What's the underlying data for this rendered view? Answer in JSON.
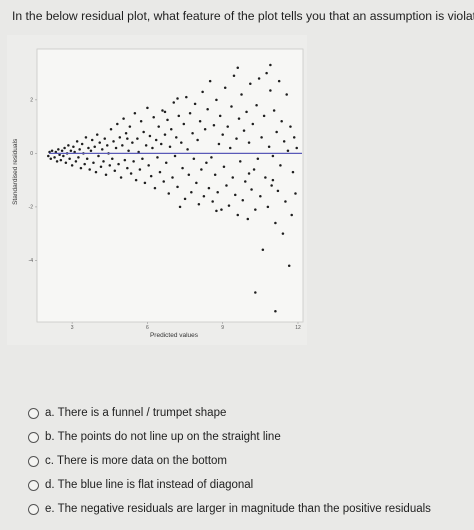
{
  "question": "In the below residual plot, what feature of the plot tells you that an assumption is violated?",
  "chart_data": {
    "type": "scatter",
    "title": "",
    "xlabel": "Predicted values",
    "ylabel": "Standardised residuals",
    "xlim": [
      1.6,
      12.2
    ],
    "ylim": [
      -6.3,
      3.9
    ],
    "x_ticks": [
      "3",
      "6",
      "9",
      "12"
    ],
    "y_ticks": [
      "2",
      "0",
      "-2",
      "-4"
    ],
    "grid": false,
    "fit_line": {
      "y": 0,
      "color": "#5a5ab8"
    },
    "points": [
      [
        2.05,
        -0.1
      ],
      [
        2.1,
        0.05
      ],
      [
        2.15,
        -0.2
      ],
      [
        2.2,
        0.1
      ],
      [
        2.3,
        -0.15
      ],
      [
        2.35,
        0.05
      ],
      [
        2.4,
        -0.3
      ],
      [
        2.45,
        0.15
      ],
      [
        2.5,
        -0.05
      ],
      [
        2.55,
        -0.25
      ],
      [
        2.6,
        0.1
      ],
      [
        2.65,
        -0.1
      ],
      [
        2.7,
        0.2
      ],
      [
        2.75,
        -0.35
      ],
      [
        2.8,
        0.0
      ],
      [
        2.85,
        0.3
      ],
      [
        2.9,
        -0.2
      ],
      [
        2.95,
        0.1
      ],
      [
        3.0,
        -0.45
      ],
      [
        3.05,
        0.25
      ],
      [
        3.1,
        0.05
      ],
      [
        3.15,
        -0.3
      ],
      [
        3.2,
        0.45
      ],
      [
        3.25,
        -0.15
      ],
      [
        3.3,
        0.15
      ],
      [
        3.35,
        -0.55
      ],
      [
        3.4,
        0.35
      ],
      [
        3.45,
        0.0
      ],
      [
        3.5,
        -0.4
      ],
      [
        3.55,
        0.6
      ],
      [
        3.6,
        -0.2
      ],
      [
        3.65,
        0.2
      ],
      [
        3.7,
        -0.6
      ],
      [
        3.75,
        0.1
      ],
      [
        3.8,
        0.5
      ],
      [
        3.85,
        -0.35
      ],
      [
        3.9,
        0.25
      ],
      [
        3.95,
        -0.7
      ],
      [
        4.0,
        0.7
      ],
      [
        4.05,
        -0.1
      ],
      [
        4.1,
        0.4
      ],
      [
        4.15,
        -0.5
      ],
      [
        4.2,
        0.15
      ],
      [
        4.25,
        -0.3
      ],
      [
        4.3,
        0.55
      ],
      [
        4.35,
        -0.8
      ],
      [
        4.4,
        0.3
      ],
      [
        4.45,
        0.0
      ],
      [
        4.5,
        -0.45
      ],
      [
        4.55,
        0.9
      ],
      [
        4.6,
        -0.2
      ],
      [
        4.65,
        0.45
      ],
      [
        4.7,
        -0.65
      ],
      [
        4.75,
        0.2
      ],
      [
        4.8,
        1.1
      ],
      [
        4.85,
        -0.4
      ],
      [
        4.9,
        0.6
      ],
      [
        4.95,
        -0.9
      ],
      [
        5.0,
        0.3
      ],
      [
        5.05,
        1.3
      ],
      [
        5.1,
        -0.25
      ],
      [
        5.15,
        0.75
      ],
      [
        5.2,
        -0.55
      ],
      [
        5.25,
        0.1
      ],
      [
        5.3,
        1.0
      ],
      [
        5.35,
        -0.75
      ],
      [
        5.4,
        0.4
      ],
      [
        5.45,
        -0.3
      ],
      [
        5.5,
        1.5
      ],
      [
        5.55,
        -1.0
      ],
      [
        5.6,
        0.55
      ],
      [
        5.65,
        0.05
      ],
      [
        5.7,
        -0.6
      ],
      [
        5.75,
        1.2
      ],
      [
        5.8,
        -0.2
      ],
      [
        5.85,
        0.8
      ],
      [
        5.9,
        -1.1
      ],
      [
        5.95,
        0.3
      ],
      [
        6.0,
        1.7
      ],
      [
        6.05,
        -0.45
      ],
      [
        6.1,
        0.65
      ],
      [
        6.15,
        -0.85
      ],
      [
        6.2,
        0.2
      ],
      [
        6.25,
        1.35
      ],
      [
        6.3,
        -1.3
      ],
      [
        6.35,
        0.5
      ],
      [
        6.4,
        -0.15
      ],
      [
        6.45,
        1.0
      ],
      [
        6.5,
        -0.7
      ],
      [
        6.55,
        0.35
      ],
      [
        6.6,
        1.6
      ],
      [
        6.65,
        -1.05
      ],
      [
        6.7,
        0.7
      ],
      [
        6.75,
        -0.35
      ],
      [
        6.8,
        1.25
      ],
      [
        6.85,
        -1.5
      ],
      [
        6.9,
        0.25
      ],
      [
        6.95,
        0.9
      ],
      [
        7.0,
        -0.9
      ],
      [
        7.05,
        1.9
      ],
      [
        7.1,
        -0.1
      ],
      [
        7.15,
        0.6
      ],
      [
        7.2,
        -1.25
      ],
      [
        7.25,
        1.4
      ],
      [
        7.3,
        -2.0
      ],
      [
        7.35,
        0.4
      ],
      [
        7.4,
        -0.55
      ],
      [
        7.45,
        1.1
      ],
      [
        7.5,
        -1.7
      ],
      [
        7.55,
        2.1
      ],
      [
        7.6,
        0.15
      ],
      [
        7.65,
        -0.8
      ],
      [
        7.7,
        1.5
      ],
      [
        7.75,
        -1.45
      ],
      [
        7.8,
        0.75
      ],
      [
        7.85,
        -0.2
      ],
      [
        7.9,
        1.85
      ],
      [
        7.95,
        -1.1
      ],
      [
        8.0,
        0.5
      ],
      [
        8.05,
        -1.9
      ],
      [
        8.1,
        1.2
      ],
      [
        8.15,
        -0.6
      ],
      [
        8.2,
        2.3
      ],
      [
        8.25,
        -1.6
      ],
      [
        8.3,
        0.9
      ],
      [
        8.35,
        -0.35
      ],
      [
        8.4,
        1.65
      ],
      [
        8.45,
        -1.3
      ],
      [
        8.5,
        2.7
      ],
      [
        8.55,
        -0.15
      ],
      [
        8.6,
        -1.8
      ],
      [
        8.65,
        1.05
      ],
      [
        8.7,
        -0.8
      ],
      [
        8.75,
        2.0
      ],
      [
        8.8,
        -1.45
      ],
      [
        8.85,
        0.35
      ],
      [
        8.9,
        1.4
      ],
      [
        8.95,
        -2.1
      ],
      [
        9.0,
        0.7
      ],
      [
        9.05,
        -0.5
      ],
      [
        9.1,
        2.45
      ],
      [
        9.15,
        -1.2
      ],
      [
        9.2,
        1.0
      ],
      [
        9.25,
        -1.95
      ],
      [
        9.3,
        0.2
      ],
      [
        9.35,
        1.75
      ],
      [
        9.4,
        -0.9
      ],
      [
        9.45,
        2.9
      ],
      [
        9.5,
        -1.55
      ],
      [
        9.55,
        0.55
      ],
      [
        9.6,
        -2.3
      ],
      [
        9.65,
        1.3
      ],
      [
        9.7,
        -0.3
      ],
      [
        9.75,
        2.2
      ],
      [
        9.8,
        -1.75
      ],
      [
        9.85,
        0.85
      ],
      [
        9.9,
        -1.05
      ],
      [
        9.95,
        1.55
      ],
      [
        10.0,
        -2.45
      ],
      [
        10.05,
        0.4
      ],
      [
        10.1,
        2.6
      ],
      [
        10.15,
        -1.35
      ],
      [
        10.2,
        1.1
      ],
      [
        10.25,
        -0.6
      ],
      [
        10.3,
        -2.1
      ],
      [
        10.35,
        1.8
      ],
      [
        10.4,
        -0.2
      ],
      [
        10.45,
        2.8
      ],
      [
        10.5,
        -1.6
      ],
      [
        10.55,
        0.6
      ],
      [
        10.6,
        -3.6
      ],
      [
        10.65,
        1.4
      ],
      [
        10.7,
        -0.9
      ],
      [
        10.75,
        3.0
      ],
      [
        10.8,
        -2.0
      ],
      [
        10.85,
        0.25
      ],
      [
        10.9,
        2.35
      ],
      [
        10.95,
        -1.2
      ],
      [
        11.0,
        -0.1
      ],
      [
        11.05,
        1.6
      ],
      [
        11.1,
        -2.6
      ],
      [
        11.15,
        0.8
      ],
      [
        11.2,
        -1.4
      ],
      [
        11.25,
        2.7
      ],
      [
        11.3,
        -0.45
      ],
      [
        11.35,
        1.2
      ],
      [
        11.4,
        -3.0
      ],
      [
        11.45,
        0.45
      ],
      [
        11.5,
        -1.8
      ],
      [
        11.55,
        2.2
      ],
      [
        11.6,
        0.1
      ],
      [
        11.65,
        -4.2
      ],
      [
        11.7,
        1.0
      ],
      [
        11.75,
        -2.3
      ],
      [
        11.8,
        -0.7
      ],
      [
        11.85,
        0.6
      ],
      [
        11.9,
        -1.5
      ],
      [
        11.95,
        0.2
      ],
      [
        10.3,
        -5.2
      ],
      [
        11.1,
        -5.9
      ],
      [
        5.2,
        0.55
      ],
      [
        6.7,
        1.55
      ],
      [
        7.2,
        2.05
      ],
      [
        9.6,
        3.2
      ],
      [
        10.9,
        3.3
      ],
      [
        8.75,
        -2.15
      ],
      [
        10.05,
        -0.75
      ],
      [
        11.0,
        -1.0
      ]
    ]
  },
  "options": [
    {
      "letter": "a.",
      "text": "There is a funnel / trumpet shape"
    },
    {
      "letter": "b.",
      "text": "The points do not line up on the straight line"
    },
    {
      "letter": "c.",
      "text": "There is more data on the bottom"
    },
    {
      "letter": "d.",
      "text": "The blue line is flat instead of diagonal"
    },
    {
      "letter": "e.",
      "text": "The negative residuals are larger in magnitude than the positive residuals"
    }
  ]
}
